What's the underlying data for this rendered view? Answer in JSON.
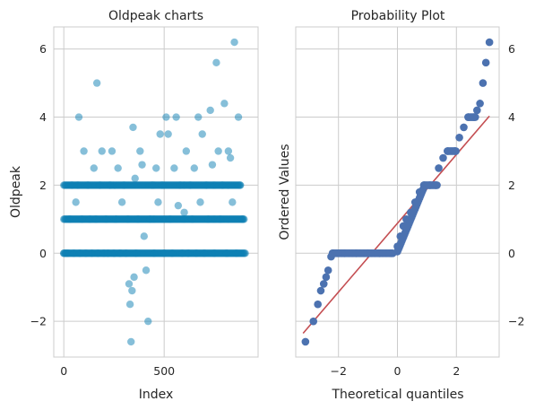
{
  "chart_data": [
    {
      "type": "scatter",
      "title": "Oldpeak charts",
      "xlabel": "Index",
      "ylabel": "Oldpeak",
      "xlim": [
        -50,
        968
      ],
      "ylim": [
        -3.05,
        6.65
      ],
      "xticks": [
        0,
        500
      ],
      "xtick_labels": [
        "0",
        "500"
      ],
      "yticks": [
        -2,
        0,
        2,
        4,
        6
      ],
      "ytick_labels": [
        "−2",
        "0",
        "2",
        "4",
        "6"
      ],
      "grid": true,
      "marker_color": "#0e7fb4",
      "marker_alpha": 0.5,
      "points": [
        [
          0,
          0
        ],
        [
          10,
          0
        ],
        [
          20,
          0
        ],
        [
          30,
          1
        ],
        [
          40,
          2
        ],
        [
          50,
          0
        ],
        [
          60,
          1.5
        ],
        [
          70,
          2
        ],
        [
          75,
          4
        ],
        [
          80,
          0
        ],
        [
          90,
          1
        ],
        [
          100,
          3
        ],
        [
          110,
          0
        ],
        [
          120,
          2
        ],
        [
          130,
          1
        ],
        [
          140,
          0
        ],
        [
          150,
          2.5
        ],
        [
          160,
          1
        ],
        [
          165,
          5
        ],
        [
          170,
          0
        ],
        [
          180,
          2
        ],
        [
          190,
          3
        ],
        [
          200,
          0
        ],
        [
          210,
          1
        ],
        [
          220,
          0
        ],
        [
          230,
          2
        ],
        [
          240,
          3
        ],
        [
          250,
          0
        ],
        [
          260,
          1
        ],
        [
          270,
          2.5
        ],
        [
          280,
          0
        ],
        [
          290,
          1.5
        ],
        [
          300,
          2
        ],
        [
          310,
          0
        ],
        [
          320,
          1
        ],
        [
          325,
          -0.9
        ],
        [
          330,
          -1.5
        ],
        [
          335,
          -2.6
        ],
        [
          340,
          -1.1
        ],
        [
          345,
          3.7
        ],
        [
          350,
          -0.7
        ],
        [
          355,
          2.2
        ],
        [
          360,
          0
        ],
        [
          370,
          1
        ],
        [
          380,
          3
        ],
        [
          390,
          2.6
        ],
        [
          400,
          0.5
        ],
        [
          410,
          -0.5
        ],
        [
          420,
          -2
        ],
        [
          430,
          1
        ],
        [
          440,
          2
        ],
        [
          450,
          0
        ],
        [
          460,
          2.5
        ],
        [
          470,
          1.5
        ],
        [
          480,
          3.5
        ],
        [
          490,
          2
        ],
        [
          500,
          0
        ],
        [
          510,
          4
        ],
        [
          520,
          3.5
        ],
        [
          530,
          1
        ],
        [
          540,
          0
        ],
        [
          550,
          2.5
        ],
        [
          560,
          4
        ],
        [
          570,
          1.4
        ],
        [
          580,
          2
        ],
        [
          590,
          0
        ],
        [
          600,
          1.2
        ],
        [
          610,
          3
        ],
        [
          620,
          0
        ],
        [
          630,
          2
        ],
        [
          640,
          1
        ],
        [
          650,
          2.5
        ],
        [
          660,
          0
        ],
        [
          670,
          4
        ],
        [
          680,
          1.5
        ],
        [
          690,
          3.5
        ],
        [
          700,
          0
        ],
        [
          710,
          2
        ],
        [
          720,
          1
        ],
        [
          730,
          4.2
        ],
        [
          740,
          2.6
        ],
        [
          750,
          0
        ],
        [
          760,
          5.6
        ],
        [
          770,
          3
        ],
        [
          780,
          1
        ],
        [
          790,
          2
        ],
        [
          800,
          4.4
        ],
        [
          810,
          0
        ],
        [
          820,
          3
        ],
        [
          830,
          2.8
        ],
        [
          840,
          1.5
        ],
        [
          850,
          6.2
        ],
        [
          860,
          0
        ],
        [
          870,
          4
        ],
        [
          880,
          2
        ],
        [
          890,
          1
        ]
      ],
      "band_points": [
        [
          0,
          0
        ],
        [
          60,
          0
        ],
        [
          120,
          0
        ],
        [
          180,
          0
        ],
        [
          240,
          0
        ],
        [
          300,
          0
        ],
        [
          360,
          0
        ],
        [
          420,
          0
        ],
        [
          480,
          0
        ],
        [
          540,
          0
        ],
        [
          600,
          0
        ],
        [
          660,
          0
        ],
        [
          720,
          0
        ],
        [
          780,
          0
        ],
        [
          840,
          0
        ],
        [
          905,
          0
        ],
        [
          0,
          1
        ],
        [
          100,
          1
        ],
        [
          200,
          1
        ],
        [
          300,
          1
        ],
        [
          450,
          1
        ],
        [
          600,
          1
        ],
        [
          750,
          1
        ],
        [
          900,
          1
        ],
        [
          0,
          2
        ],
        [
          100,
          2
        ],
        [
          200,
          2
        ],
        [
          300,
          2
        ],
        [
          450,
          2
        ],
        [
          600,
          2
        ],
        [
          750,
          2
        ],
        [
          880,
          2
        ]
      ]
    },
    {
      "type": "scatter",
      "title": "Probability Plot",
      "xlabel": "Theoretical quantiles",
      "ylabel": "Ordered Values",
      "xlim": [
        -3.45,
        3.45
      ],
      "ylim": [
        -3.05,
        6.65
      ],
      "xticks": [
        -2,
        0,
        2
      ],
      "xtick_labels": [
        "−2",
        "0",
        "2"
      ],
      "yticks": [
        -2,
        0,
        2,
        4,
        6
      ],
      "ytick_labels": [
        "−2",
        "0",
        "2",
        "4",
        "6"
      ],
      "grid": true,
      "marker_color": "#4c72b0",
      "line_color": "#c44e52",
      "fit_line": {
        "slope": 1.01,
        "intercept": 0.88
      },
      "points": [
        [
          -3.12,
          -2.6
        ],
        [
          -2.85,
          -2.0
        ],
        [
          -2.7,
          -1.5
        ],
        [
          -2.6,
          -1.1
        ],
        [
          -2.5,
          -0.9
        ],
        [
          -2.42,
          -0.7
        ],
        [
          -2.35,
          -0.5
        ],
        [
          -2.25,
          -0.1
        ],
        [
          -2.2,
          0
        ],
        [
          -1.8,
          0
        ],
        [
          -1.4,
          0
        ],
        [
          -1.0,
          0
        ],
        [
          -0.6,
          0
        ],
        [
          -0.2,
          0
        ],
        [
          0.0,
          0.2
        ],
        [
          0.1,
          0.5
        ],
        [
          0.2,
          0.8
        ],
        [
          0.3,
          1.0
        ],
        [
          0.45,
          1.2
        ],
        [
          0.6,
          1.5
        ],
        [
          0.75,
          1.8
        ],
        [
          0.9,
          2.0
        ],
        [
          1.1,
          2.0
        ],
        [
          1.3,
          2.0
        ],
        [
          1.4,
          2.5
        ],
        [
          1.55,
          2.8
        ],
        [
          1.7,
          3.0
        ],
        [
          1.95,
          3.0
        ],
        [
          2.1,
          3.4
        ],
        [
          2.25,
          3.7
        ],
        [
          2.4,
          4.0
        ],
        [
          2.6,
          4.0
        ],
        [
          2.7,
          4.2
        ],
        [
          2.8,
          4.4
        ],
        [
          2.9,
          5.0
        ],
        [
          3.0,
          5.6
        ],
        [
          3.12,
          6.2
        ]
      ]
    }
  ]
}
